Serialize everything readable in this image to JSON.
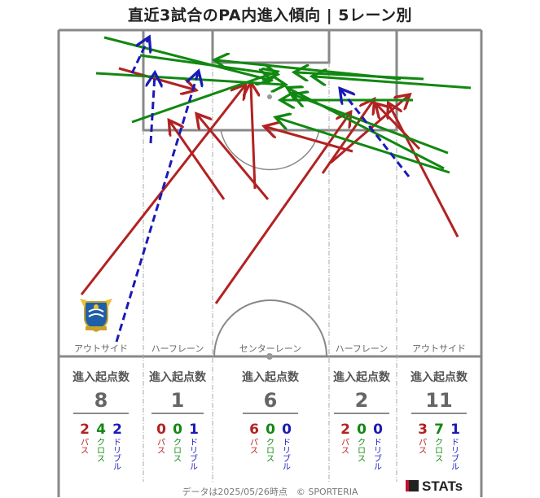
{
  "title": "直近3試合のPA内進入傾向 | 5レーン別",
  "colors": {
    "pass": "#b22222",
    "cross": "#118811",
    "dribble": "#1a1ab8"
  },
  "lanes": [
    {
      "name": "アウトサイド",
      "heading": "進入起点数",
      "total": "8",
      "pass": "2",
      "cross": "4",
      "dribble": "2"
    },
    {
      "name": "ハーフレーン",
      "heading": "進入起点数",
      "total": "1",
      "pass": "0",
      "cross": "0",
      "dribble": "1"
    },
    {
      "name": "センターレーン",
      "heading": "進入起点数",
      "total": "6",
      "pass": "6",
      "cross": "0",
      "dribble": "0"
    },
    {
      "name": "ハーフレーン",
      "heading": "進入起点数",
      "total": "2",
      "pass": "2",
      "cross": "0",
      "dribble": "0"
    },
    {
      "name": "アウトサイド",
      "heading": "進入起点数",
      "total": "11",
      "pass": "3",
      "cross": "7",
      "dribble": "1"
    }
  ],
  "type_labels": {
    "pass": "パス",
    "cross": "クロス",
    "dribble": "ドリブル"
  },
  "footer": "データは2025/05/26時点　© SPORTERIA",
  "brand": "STATs",
  "chart_data": {
    "type": "arrow-map",
    "categories": [
      "アウトサイド",
      "ハーフレーン",
      "センターレーン",
      "ハーフレーン",
      "アウトサイド"
    ],
    "series": [
      {
        "name": "パス",
        "values": [
          2,
          0,
          6,
          2,
          3
        ]
      },
      {
        "name": "クロス",
        "values": [
          4,
          0,
          0,
          0,
          7
        ]
      },
      {
        "name": "ドリブル",
        "values": [
          2,
          1,
          0,
          0,
          1
        ]
      }
    ],
    "totals": [
      8,
      1,
      6,
      2,
      11
    ]
  }
}
